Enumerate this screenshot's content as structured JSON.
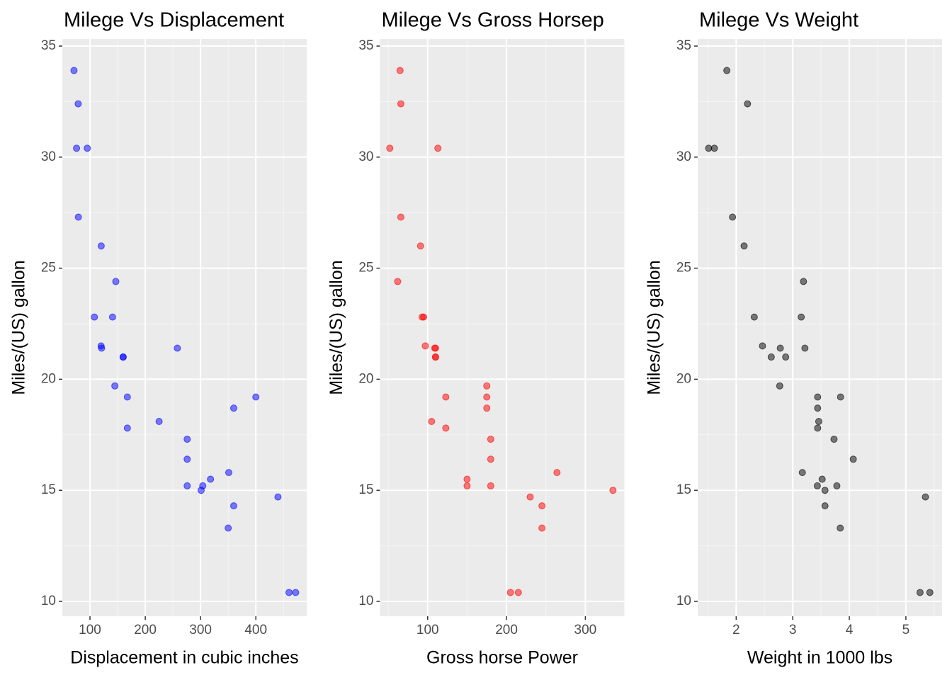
{
  "chart_data": [
    {
      "type": "scatter",
      "title": "Milege Vs Displacement",
      "x_label": "Displacement in cubic inches",
      "y_label": "Miles/(US) gallon",
      "color": "#0000ff",
      "x": [
        160,
        160,
        108,
        258,
        360,
        225,
        360,
        146.7,
        140.8,
        167.6,
        167.6,
        275.8,
        275.8,
        275.8,
        472,
        460,
        440,
        78.7,
        75.7,
        71.1,
        120.1,
        318,
        304,
        350,
        400,
        79,
        120.3,
        95.1,
        351,
        145,
        301,
        121
      ],
      "values": [
        21.0,
        21.0,
        22.8,
        21.4,
        18.7,
        18.1,
        14.3,
        24.4,
        22.8,
        19.2,
        17.8,
        16.4,
        17.3,
        15.2,
        10.4,
        10.4,
        14.7,
        32.4,
        30.4,
        33.9,
        21.5,
        15.5,
        15.2,
        13.3,
        19.2,
        27.3,
        26.0,
        30.4,
        15.8,
        19.7,
        15.0,
        21.4
      ],
      "xlim": [
        50,
        492
      ],
      "xticks": [
        100,
        200,
        300,
        400
      ],
      "ylim": [
        9.33,
        35.32
      ],
      "yticks": [
        10,
        15,
        20,
        25,
        30,
        35
      ],
      "grid": true
    },
    {
      "type": "scatter",
      "title": "Milege Vs Gross Horsep",
      "x_label": "Gross horse Power",
      "y_label": "Miles/(US) gallon",
      "color": "#ff0000",
      "x": [
        110,
        110,
        93,
        110,
        175,
        105,
        245,
        62,
        95,
        123,
        123,
        180,
        180,
        180,
        205,
        215,
        230,
        66,
        52,
        65,
        97,
        150,
        150,
        245,
        175,
        66,
        91,
        113,
        264,
        175,
        335,
        109
      ],
      "values": [
        21.0,
        21.0,
        22.8,
        21.4,
        18.7,
        18.1,
        14.3,
        24.4,
        22.8,
        19.2,
        17.8,
        16.4,
        17.3,
        15.2,
        10.4,
        10.4,
        14.7,
        32.4,
        30.4,
        33.9,
        21.5,
        15.5,
        15.2,
        13.3,
        19.2,
        27.3,
        26.0,
        30.4,
        15.8,
        19.7,
        15.0,
        21.4
      ],
      "xlim": [
        39.6,
        349.5
      ],
      "xticks": [
        100,
        200,
        300
      ],
      "ylim": [
        9.33,
        35.32
      ],
      "yticks": [
        10,
        15,
        20,
        25,
        30,
        35
      ],
      "grid": true
    },
    {
      "type": "scatter",
      "title": "Milege Vs Weight",
      "x_label": "Weight in 1000 lbs",
      "y_label": "Miles/(US) gallon",
      "color": "#000000",
      "x": [
        2.62,
        2.875,
        2.32,
        3.215,
        3.44,
        3.46,
        3.57,
        3.19,
        3.15,
        3.44,
        3.44,
        4.07,
        3.73,
        3.78,
        5.25,
        5.424,
        5.345,
        2.2,
        1.615,
        1.835,
        2.465,
        3.52,
        3.435,
        3.84,
        3.845,
        1.935,
        2.14,
        1.513,
        3.17,
        2.77,
        3.57,
        2.78
      ],
      "values": [
        21.0,
        21.0,
        22.8,
        21.4,
        18.7,
        18.1,
        14.3,
        24.4,
        22.8,
        19.2,
        17.8,
        16.4,
        17.3,
        15.2,
        10.4,
        10.4,
        14.7,
        32.4,
        30.4,
        33.9,
        21.5,
        15.5,
        15.2,
        13.3,
        19.2,
        27.3,
        26.0,
        30.4,
        15.8,
        19.7,
        15.0,
        21.4
      ],
      "xlim": [
        1.32,
        5.64
      ],
      "xticks": [
        2,
        3,
        4,
        5
      ],
      "ylim": [
        9.33,
        35.32
      ],
      "yticks": [
        10,
        15,
        20,
        25,
        30,
        35
      ],
      "grid": true
    }
  ]
}
